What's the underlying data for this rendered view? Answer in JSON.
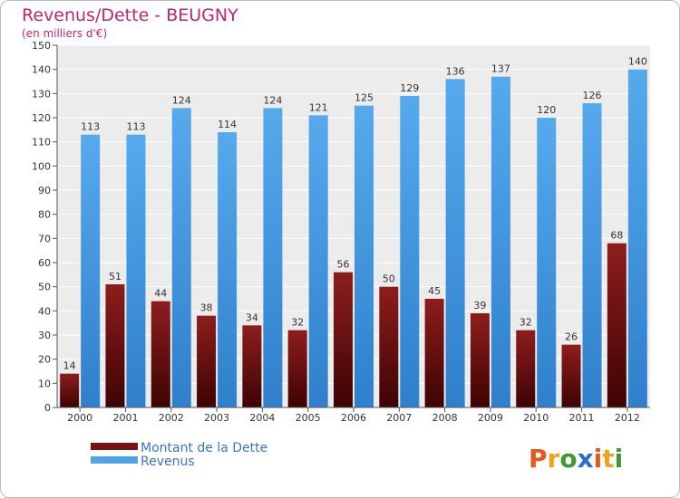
{
  "chart_data": {
    "type": "bar",
    "title": "Revenus/Dette - BEUGNY",
    "subtitle": "(en milliers d'€)",
    "categories": [
      "2000",
      "2001",
      "2002",
      "2003",
      "2004",
      "2005",
      "2006",
      "2007",
      "2008",
      "2009",
      "2010",
      "2011",
      "2012"
    ],
    "series": [
      {
        "name": "Montant de la Dette",
        "color": "#7a1212",
        "values": [
          14,
          51,
          44,
          38,
          34,
          32,
          56,
          50,
          45,
          39,
          32,
          26,
          68
        ]
      },
      {
        "name": "Revenus",
        "color": "#4fa3e8",
        "values": [
          113,
          113,
          124,
          114,
          124,
          121,
          125,
          129,
          136,
          137,
          120,
          126,
          140
        ]
      }
    ],
    "ylim": [
      0,
      150
    ],
    "yticks": [
      0,
      10,
      20,
      30,
      40,
      50,
      60,
      70,
      80,
      90,
      100,
      110,
      120,
      130,
      140,
      150
    ],
    "grid": true,
    "legend_position": "bottom-left"
  },
  "logo": {
    "letters": [
      "P",
      "r",
      "o",
      "x",
      "i",
      "t",
      "i"
    ],
    "colors": [
      "#e8561c",
      "#f0a21b",
      "#3d9a2e",
      "#2a6fc9",
      "#e8561c",
      "#f0a21b",
      "#3d9a2e"
    ]
  }
}
